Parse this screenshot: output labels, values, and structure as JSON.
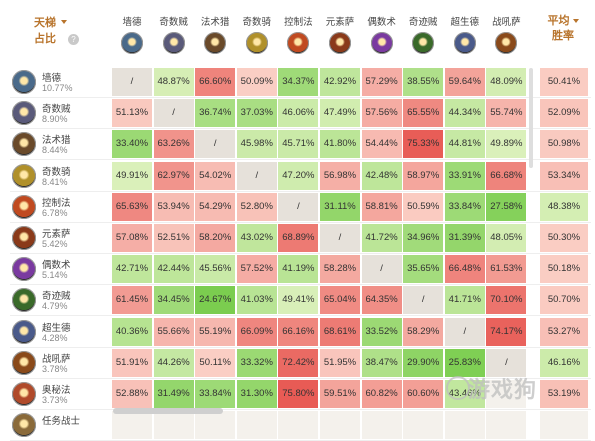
{
  "header": {
    "corner_line1": "天梯",
    "corner_line2": "占比",
    "help": "?",
    "avg_line1": "平均",
    "avg_line2": "胜率"
  },
  "colors": {
    "accent": "#b8742c",
    "self_cell": "#e6e1da"
  },
  "columns": [
    {
      "name": "墙德",
      "icon": "wall-druid-icon",
      "color": "#4a6a8a"
    },
    {
      "name": "奇数贼",
      "icon": "odd-rogue-icon",
      "color": "#5a5a7a"
    },
    {
      "name": "法术猎",
      "icon": "spell-hunter-icon",
      "color": "#6a4a2a"
    },
    {
      "name": "奇数骑",
      "icon": "odd-paladin-icon",
      "color": "#b0902a"
    },
    {
      "name": "控制法",
      "icon": "control-mage-icon",
      "color": "#c04a20"
    },
    {
      "name": "元素萨",
      "icon": "elemental-shaman-icon",
      "color": "#8a3a1a"
    },
    {
      "name": "偶数术",
      "icon": "even-warlock-icon",
      "color": "#7a3aa0"
    },
    {
      "name": "奇迹贼",
      "icon": "miracle-rogue-icon",
      "color": "#3a6a2a"
    },
    {
      "name": "超生德",
      "icon": "reborn-druid-icon",
      "color": "#4a5a8a"
    },
    {
      "name": "战吼萨",
      "icon": "battlecry-shaman-icon",
      "color": "#8a4a1a"
    }
  ],
  "rows": [
    {
      "name": "墙德",
      "pct": "10.77%",
      "icon": "wall-druid-icon",
      "color": "#4a6a8a",
      "cells": [
        "/",
        "48.87%",
        "66.60%",
        "50.09%",
        "34.37%",
        "42.92%",
        "57.29%",
        "38.55%",
        "59.64%",
        "48.09%"
      ],
      "avg": "50.41%"
    },
    {
      "name": "奇数贼",
      "pct": "8.90%",
      "icon": "odd-rogue-icon",
      "color": "#5a5a7a",
      "cells": [
        "51.13%",
        "/",
        "36.74%",
        "37.03%",
        "46.06%",
        "47.49%",
        "57.56%",
        "65.55%",
        "44.34%",
        "55.74%"
      ],
      "avg": "52.09%"
    },
    {
      "name": "法术猎",
      "pct": "8.44%",
      "icon": "spell-hunter-icon",
      "color": "#6a4a2a",
      "cells": [
        "33.40%",
        "63.26%",
        "/",
        "45.98%",
        "45.71%",
        "41.80%",
        "54.44%",
        "75.33%",
        "44.81%",
        "49.89%"
      ],
      "avg": "50.98%"
    },
    {
      "name": "奇数骑",
      "pct": "8.41%",
      "icon": "odd-paladin-icon",
      "color": "#b0902a",
      "cells": [
        "49.91%",
        "62.97%",
        "54.02%",
        "/",
        "47.20%",
        "56.98%",
        "42.48%",
        "58.97%",
        "33.91%",
        "66.68%"
      ],
      "avg": "53.34%"
    },
    {
      "name": "控制法",
      "pct": "6.78%",
      "icon": "control-mage-icon",
      "color": "#c04a20",
      "cells": [
        "65.63%",
        "53.94%",
        "54.29%",
        "52.80%",
        "/",
        "31.11%",
        "58.81%",
        "50.59%",
        "33.84%",
        "27.58%"
      ],
      "avg": "48.38%"
    },
    {
      "name": "元素萨",
      "pct": "5.42%",
      "icon": "elemental-shaman-icon",
      "color": "#8a3a1a",
      "cells": [
        "57.08%",
        "52.51%",
        "58.20%",
        "43.02%",
        "68.89%",
        "/",
        "41.72%",
        "34.96%",
        "31.39%",
        "48.05%"
      ],
      "avg": "50.30%"
    },
    {
      "name": "偶数术",
      "pct": "5.14%",
      "icon": "even-warlock-icon",
      "color": "#7a3aa0",
      "cells": [
        "42.71%",
        "42.44%",
        "45.56%",
        "57.52%",
        "41.19%",
        "58.28%",
        "/",
        "35.65%",
        "66.48%",
        "61.53%"
      ],
      "avg": "50.18%"
    },
    {
      "name": "奇迹贼",
      "pct": "4.79%",
      "icon": "miracle-rogue-icon",
      "color": "#3a6a2a",
      "cells": [
        "61.45%",
        "34.45%",
        "24.67%",
        "41.03%",
        "49.41%",
        "65.04%",
        "64.35%",
        "/",
        "41.71%",
        "70.10%"
      ],
      "avg": "50.70%"
    },
    {
      "name": "超生德",
      "pct": "4.28%",
      "icon": "reborn-druid-icon",
      "color": "#4a5a8a",
      "cells": [
        "40.36%",
        "55.66%",
        "55.19%",
        "66.09%",
        "66.16%",
        "68.61%",
        "33.52%",
        "58.29%",
        "/",
        "74.17%"
      ],
      "avg": "53.27%"
    },
    {
      "name": "战吼萨",
      "pct": "3.78%",
      "icon": "battlecry-shaman-icon",
      "color": "#8a4a1a",
      "cells": [
        "51.91%",
        "44.26%",
        "50.11%",
        "33.32%",
        "72.42%",
        "51.95%",
        "38.47%",
        "29.90%",
        "25.83%",
        "/"
      ],
      "avg": "46.16%"
    },
    {
      "name": "奥秘法",
      "pct": "3.73%",
      "icon": "secret-mage-icon",
      "color": "#b04a2a",
      "cells": [
        "52.88%",
        "31.49%",
        "33.84%",
        "31.30%",
        "75.80%",
        "59.51%",
        "60.82%",
        "60.60%",
        "43.46%",
        ""
      ],
      "avg": "53.19%"
    },
    {
      "name": "任务战士",
      "pct": "",
      "icon": "quest-warrior-icon",
      "color": "#8a6a3a",
      "cells": [
        "",
        "",
        "",
        "",
        "",
        "",
        "",
        "",
        "",
        ""
      ],
      "avg": ""
    }
  ],
  "watermark": "游戏狗"
}
